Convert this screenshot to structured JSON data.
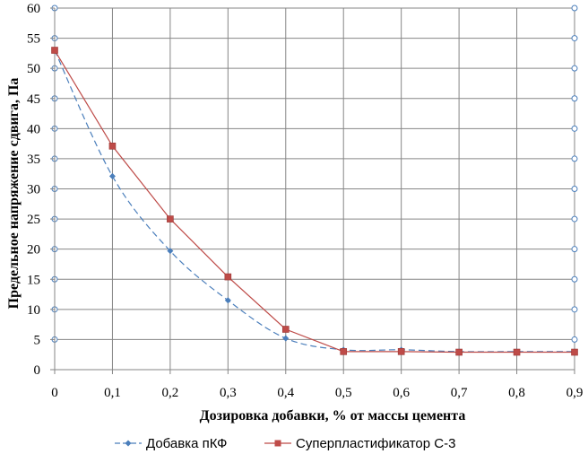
{
  "chart_data": {
    "type": "line",
    "xlabel": "Дозировка добавки, % от массы цемента",
    "ylabel": "Предельное напряжение сдвига, Па",
    "xlim": [
      0,
      0.9
    ],
    "ylim": [
      0,
      60
    ],
    "x_ticks": [
      "0",
      "0,1",
      "0,2",
      "0,3",
      "0,4",
      "0,5",
      "0,6",
      "0,7",
      "0,8",
      "0,9"
    ],
    "y_ticks": [
      "0",
      "5",
      "10",
      "15",
      "20",
      "25",
      "30",
      "35",
      "40",
      "45",
      "50",
      "55",
      "60"
    ],
    "grid": true,
    "legend_position": "bottom",
    "series": [
      {
        "name": "Добавка пКФ",
        "color": "#4a7ebb",
        "line_style": "dashed",
        "marker": "diamond",
        "x": [
          0,
          0.1,
          0.2,
          0.3,
          0.4,
          0.5,
          0.6,
          0.7,
          0.8,
          0.9
        ],
        "y": [
          53,
          32.1,
          19.7,
          11.5,
          5.2,
          3.3,
          3.3,
          3.0,
          3.0,
          3.0
        ]
      },
      {
        "name": "Суперпластификатор С-3",
        "color": "#be4b48",
        "line_style": "solid",
        "marker": "square",
        "x": [
          0,
          0.1,
          0.2,
          0.3,
          0.4,
          0.5,
          0.6,
          0.7,
          0.8,
          0.9
        ],
        "y": [
          53,
          37.1,
          25.0,
          15.4,
          6.7,
          3.0,
          3.0,
          2.9,
          2.9,
          2.9
        ]
      }
    ]
  }
}
